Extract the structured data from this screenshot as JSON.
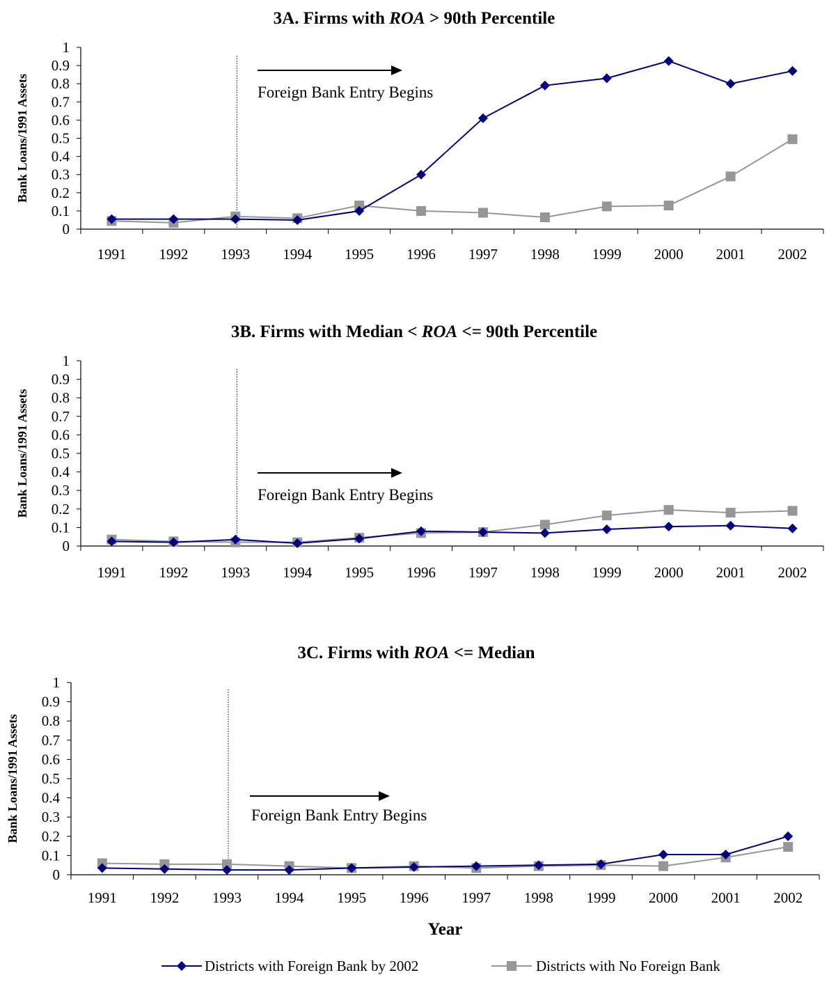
{
  "chart_data": [
    {
      "type": "line",
      "title_parts": [
        "3A. Firms with ",
        "ROA",
        " > 90th Percentile"
      ],
      "ylabel": "Bank Loans/1991 Assets",
      "annotation": "Foreign Bank Entry Begins",
      "x": [
        "1991",
        "1992",
        "1993",
        "1994",
        "1995",
        "1996",
        "1997",
        "1998",
        "1999",
        "2000",
        "2001",
        "2002"
      ],
      "yticks": [
        "0",
        "0.1",
        "0.2",
        "0.3",
        "0.4",
        "0.5",
        "0.6",
        "0.7",
        "0.8",
        "0.9",
        "1"
      ],
      "ylim": [
        0,
        1
      ],
      "vline_at": "1993",
      "series": [
        {
          "name": "Districts with Foreign Bank by 2002",
          "values": [
            0.055,
            0.055,
            0.055,
            0.05,
            0.1,
            0.3,
            0.61,
            0.79,
            0.83,
            0.925,
            0.8,
            0.87
          ]
        },
        {
          "name": "Districts with No Foreign Bank",
          "values": [
            0.045,
            0.035,
            0.07,
            0.06,
            0.13,
            0.1,
            0.09,
            0.065,
            0.125,
            0.13,
            0.29,
            0.495
          ]
        }
      ]
    },
    {
      "type": "line",
      "title_parts": [
        "3B. Firms with Median < ",
        "ROA",
        " <= 90th Percentile"
      ],
      "ylabel": "Bank Loans/1991 Assets",
      "annotation": "Foreign Bank Entry Begins",
      "x": [
        "1991",
        "1992",
        "1993",
        "1994",
        "1995",
        "1996",
        "1997",
        "1998",
        "1999",
        "2000",
        "2001",
        "2002"
      ],
      "yticks": [
        "0",
        "0.1",
        "0.2",
        "0.3",
        "0.4",
        "0.5",
        "0.6",
        "0.7",
        "0.8",
        "0.9",
        "1"
      ],
      "ylim": [
        0,
        1
      ],
      "vline_at": "1993",
      "series": [
        {
          "name": "Districts with Foreign Bank by 2002",
          "values": [
            0.025,
            0.02,
            0.035,
            0.015,
            0.04,
            0.08,
            0.075,
            0.07,
            0.09,
            0.105,
            0.11,
            0.095
          ]
        },
        {
          "name": "Districts with No Foreign Bank",
          "values": [
            0.035,
            0.025,
            0.02,
            0.02,
            0.045,
            0.07,
            0.075,
            0.115,
            0.165,
            0.195,
            0.18,
            0.19
          ]
        }
      ]
    },
    {
      "type": "line",
      "title_parts": [
        "3C. Firms with ",
        "ROA",
        " <= Median"
      ],
      "ylabel": "Bank Loans/1991 Assets",
      "xlabel": "Year",
      "annotation": "Foreign Bank Entry Begins",
      "x": [
        "1991",
        "1992",
        "1993",
        "1994",
        "1995",
        "1996",
        "1997",
        "1998",
        "1999",
        "2000",
        "2001",
        "2002"
      ],
      "yticks": [
        "0",
        "0.1",
        "0.2",
        "0.3",
        "0.4",
        "0.5",
        "0.6",
        "0.7",
        "0.8",
        "0.9",
        "1"
      ],
      "ylim": [
        0,
        1
      ],
      "vline_at": "1993",
      "series": [
        {
          "name": "Districts with Foreign Bank by 2002",
          "values": [
            0.035,
            0.03,
            0.025,
            0.025,
            0.035,
            0.04,
            0.045,
            0.05,
            0.055,
            0.105,
            0.105,
            0.2
          ]
        },
        {
          "name": "Districts with No Foreign Bank",
          "values": [
            0.06,
            0.055,
            0.055,
            0.045,
            0.035,
            0.045,
            0.035,
            0.045,
            0.05,
            0.045,
            0.09,
            0.145
          ]
        }
      ]
    }
  ],
  "legend": {
    "items": [
      {
        "label": "Districts with Foreign Bank by 2002",
        "color": "#000080",
        "marker": "diamond"
      },
      {
        "label": "Districts with No Foreign Bank",
        "color": "#969696",
        "marker": "square"
      }
    ]
  },
  "colors": {
    "series1": "#000080",
    "series2": "#969696",
    "axis": "#000000"
  }
}
